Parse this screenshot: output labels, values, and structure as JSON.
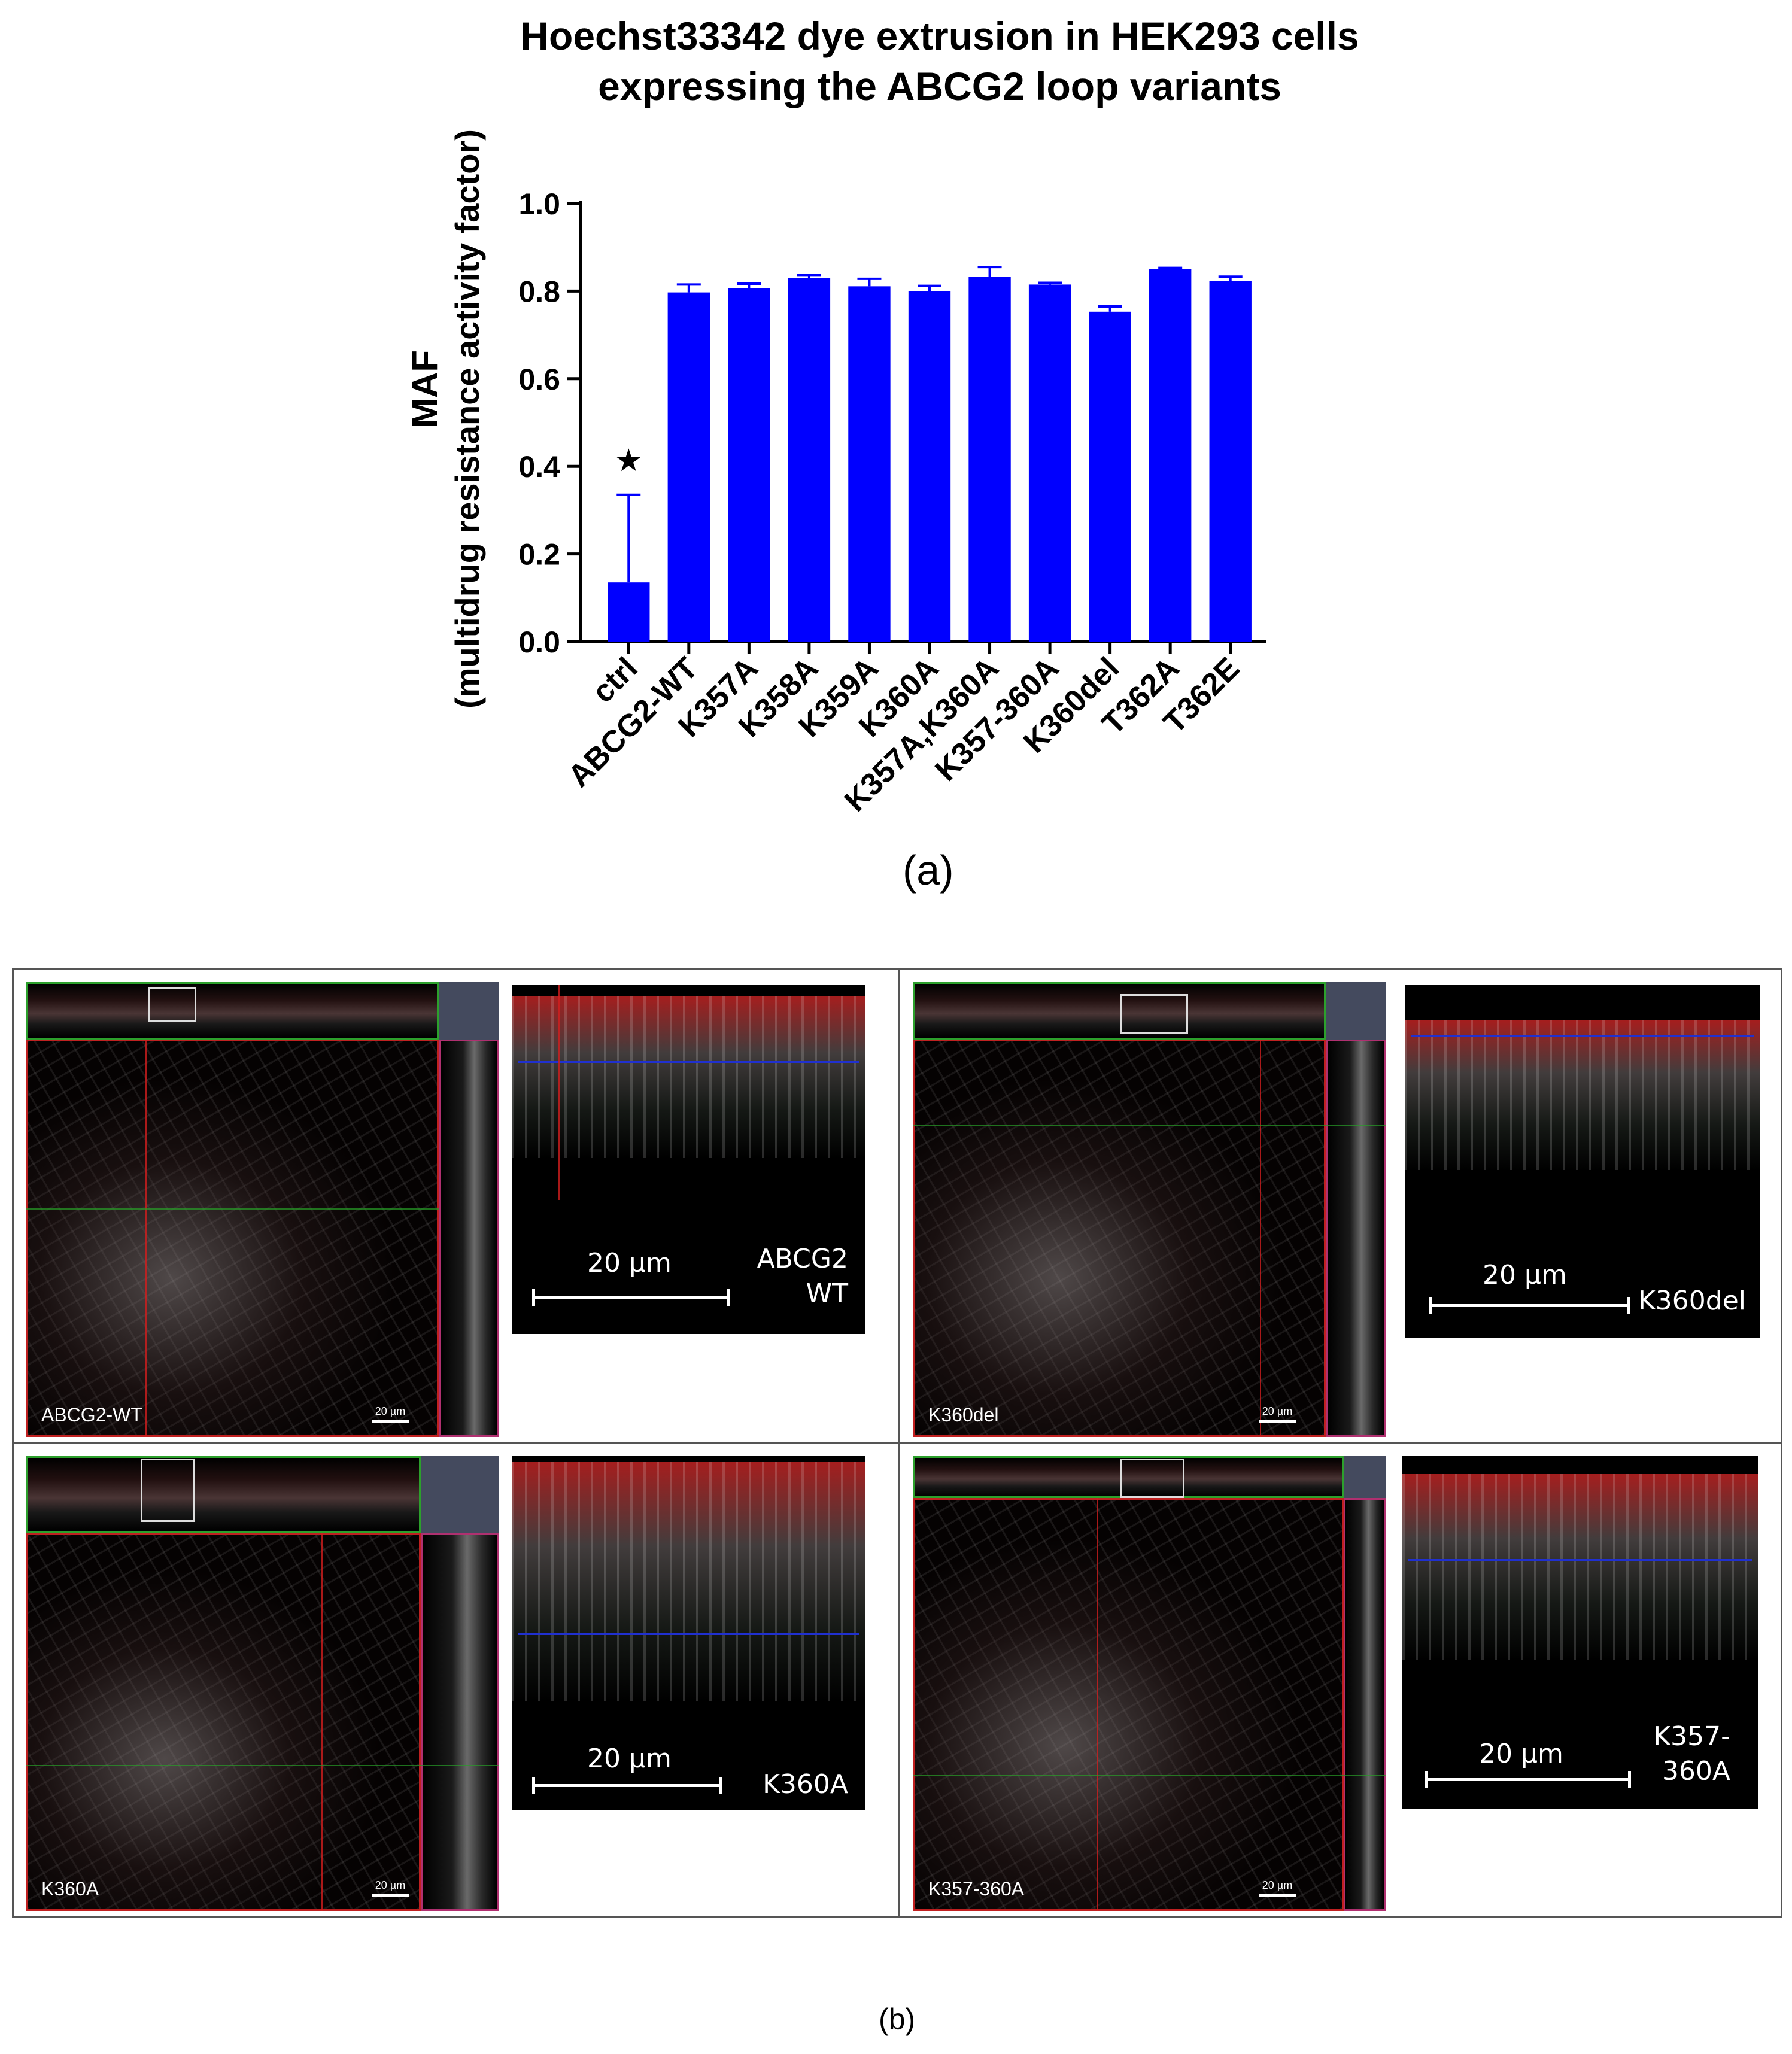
{
  "panel_a": {
    "caption": "(a)"
  },
  "panel_b": {
    "caption": "(b)",
    "views": [
      {
        "label": "ABCG2-WT",
        "zoom_label": "ABCG2\nWT",
        "zoom_scale": "20 µm",
        "mini_scale": "20 µm"
      },
      {
        "label": "K360del",
        "zoom_label": "K360del",
        "zoom_scale": "20 µm",
        "mini_scale": "20 µm"
      },
      {
        "label": "K360A",
        "zoom_label": "K360A",
        "zoom_scale": "20 µm",
        "mini_scale": "20 µm"
      },
      {
        "label": "K357-360A",
        "zoom_label": "K357-\n360A",
        "zoom_scale": "20 µm",
        "mini_scale": "20 µm"
      }
    ]
  },
  "chart_data": {
    "type": "bar",
    "title": "Hoechst33342 dye extrusion in HEK293 cells expressing the ABCG2 loop variants",
    "title_lines": [
      "Hoechst33342 dye extrusion in HEK293 cells",
      "expressing the ABCG2 loop variants"
    ],
    "ylabel": "MAF",
    "ylabel_sub": "(multidrug resistance activity factor)",
    "xlabel": "",
    "ylim": [
      0,
      1.0
    ],
    "yticks": [
      "0.0",
      "0.2",
      "0.4",
      "0.6",
      "0.8",
      "1.0"
    ],
    "categories": [
      "ctrl",
      "ABCG2-WT",
      "K357A",
      "K358A",
      "K359A",
      "K360A",
      "K357A,K360A",
      "K357-360A",
      "K360del",
      "T362A",
      "T362E"
    ],
    "values": [
      0.135,
      0.797,
      0.807,
      0.83,
      0.811,
      0.8,
      0.833,
      0.815,
      0.753,
      0.85,
      0.823
    ],
    "errors": [
      0.2,
      0.018,
      0.01,
      0.007,
      0.017,
      0.012,
      0.022,
      0.004,
      0.012,
      0.003,
      0.01
    ],
    "annotations": [
      {
        "category": "ctrl",
        "text": "★"
      }
    ],
    "bar_color": "#0000ff",
    "legend": "none",
    "grid": false
  }
}
